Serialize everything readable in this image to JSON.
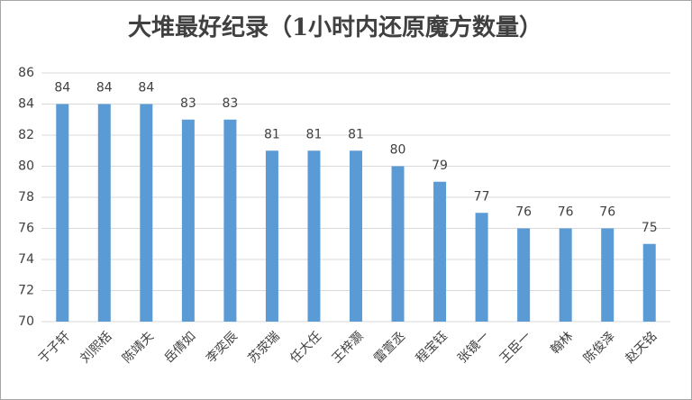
{
  "chart_data": {
    "type": "bar",
    "title": "大堆最好纪录（1小时内还原魔方数量）",
    "categories": [
      "于子轩",
      "刘熙栝",
      "陈靖夫",
      "岳倩如",
      "李奕辰",
      "苏荥瑞",
      "任大任",
      "王梓灏",
      "雷萱丞",
      "程宝钰",
      "张镜一",
      "王臣一",
      "翰林",
      "陈俊泽",
      "赵天铭"
    ],
    "values": [
      84,
      84,
      84,
      83,
      83,
      81,
      81,
      81,
      80,
      79,
      77,
      76,
      76,
      76,
      75
    ],
    "color": "#5b9bd5",
    "ylim": [
      70,
      86
    ],
    "yticks": [
      70,
      72,
      74,
      76,
      78,
      80,
      82,
      84,
      86
    ],
    "grid": true
  }
}
